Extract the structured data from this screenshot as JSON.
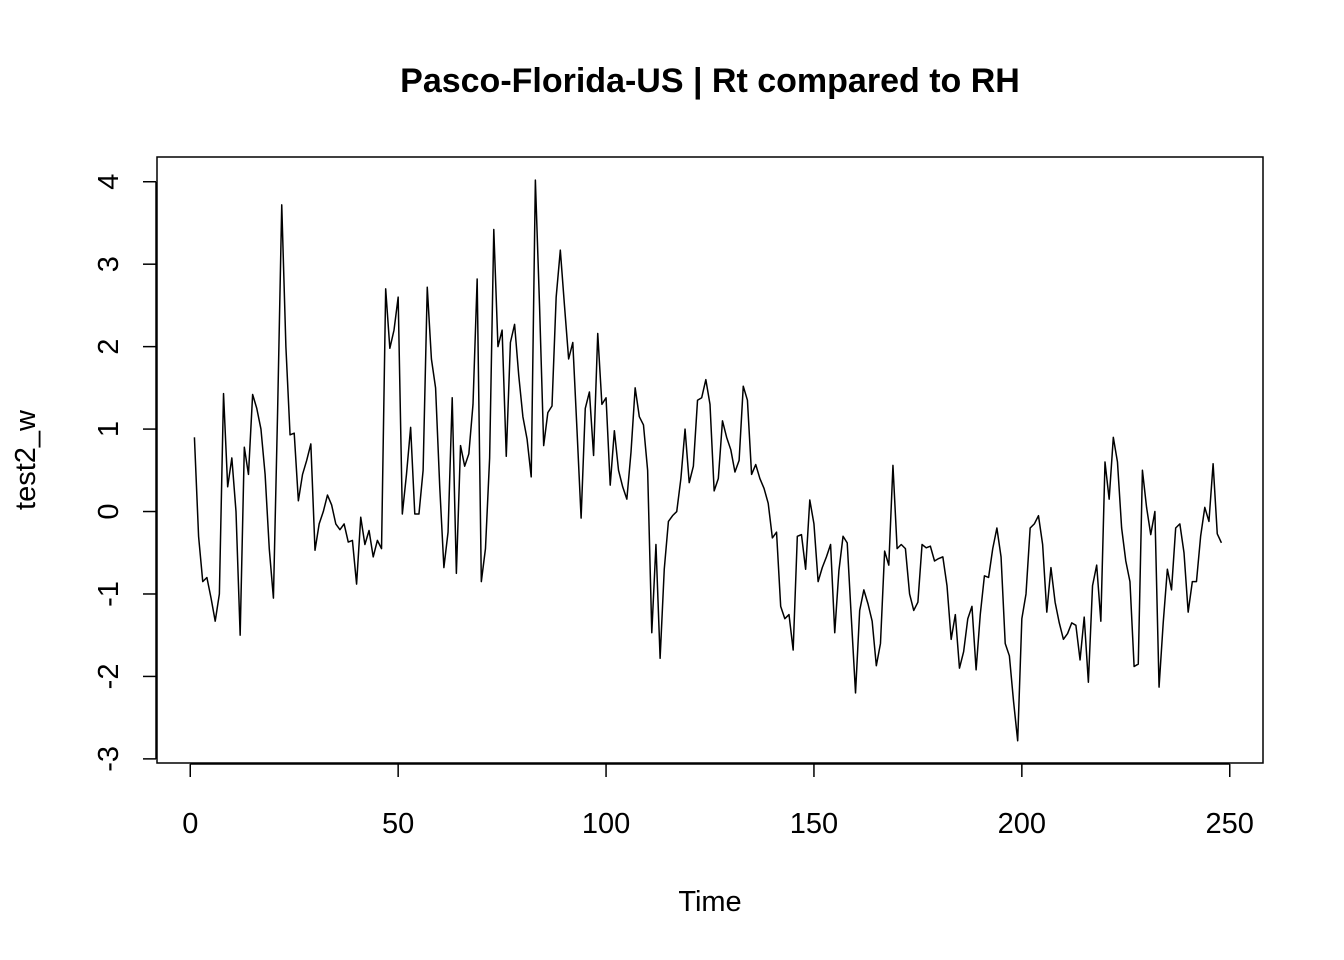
{
  "chart_data": {
    "type": "line",
    "title": "Pasco-Florida-US | Rt compared to RH",
    "xlabel": "Time",
    "ylabel": "test2_w",
    "xlim": [
      -8,
      258
    ],
    "ylim": [
      -3.05,
      4.3
    ],
    "x_ticks": [
      0,
      50,
      100,
      150,
      200,
      250
    ],
    "x_tick_labels": [
      "0",
      "50",
      "100",
      "150",
      "200",
      "250"
    ],
    "y_ticks": [
      -3,
      -2,
      -1,
      0,
      1,
      2,
      3,
      4
    ],
    "y_tick_labels": [
      "-3",
      "-2",
      "-1",
      "0",
      "1",
      "2",
      "3",
      "4"
    ],
    "grid": false,
    "legend": "none",
    "line_color": "#000000",
    "series": [
      {
        "x_start": 1,
        "x_step": 1,
        "values": [
          0.9,
          -0.3,
          -0.85,
          -0.8,
          -1.05,
          -1.33,
          -1.0,
          1.43,
          0.3,
          0.65,
          0.0,
          -1.5,
          0.78,
          0.45,
          1.42,
          1.25,
          1.0,
          0.45,
          -0.45,
          -1.05,
          1.2,
          3.72,
          2.0,
          0.93,
          0.95,
          0.13,
          0.45,
          0.62,
          0.82,
          -0.47,
          -0.15,
          0.0,
          0.2,
          0.08,
          -0.15,
          -0.22,
          -0.15,
          -0.37,
          -0.35,
          -0.88,
          -0.07,
          -0.4,
          -0.23,
          -0.55,
          -0.35,
          -0.45,
          2.7,
          1.98,
          2.2,
          2.6,
          -0.03,
          0.45,
          1.02,
          -0.03,
          -0.03,
          0.5,
          2.72,
          1.85,
          1.5,
          0.3,
          -0.68,
          -0.25,
          1.38,
          -0.75,
          0.8,
          0.55,
          0.7,
          1.3,
          2.82,
          -0.85,
          -0.45,
          0.65,
          3.42,
          2.0,
          2.2,
          0.67,
          2.05,
          2.27,
          1.65,
          1.15,
          0.88,
          0.42,
          4.02,
          2.5,
          0.8,
          1.2,
          1.28,
          2.6,
          3.17,
          2.5,
          1.85,
          2.05,
          1.0,
          -0.08,
          1.25,
          1.45,
          0.68,
          2.16,
          1.3,
          1.38,
          0.32,
          0.98,
          0.5,
          0.3,
          0.15,
          0.72,
          1.5,
          1.15,
          1.05,
          0.5,
          -1.47,
          -0.4,
          -1.78,
          -0.7,
          -0.12,
          -0.05,
          0.0,
          0.4,
          1.0,
          0.35,
          0.55,
          1.35,
          1.38,
          1.6,
          1.3,
          0.25,
          0.4,
          1.1,
          0.9,
          0.75,
          0.48,
          0.62,
          1.52,
          1.35,
          0.45,
          0.57,
          0.4,
          0.28,
          0.1,
          -0.32,
          -0.25,
          -1.15,
          -1.3,
          -1.25,
          -1.68,
          -0.3,
          -0.28,
          -0.7,
          0.14,
          -0.15,
          -0.85,
          -0.68,
          -0.55,
          -0.4,
          -1.47,
          -0.72,
          -0.3,
          -0.38,
          -1.3,
          -2.2,
          -1.2,
          -0.95,
          -1.12,
          -1.33,
          -1.87,
          -1.6,
          -0.48,
          -0.65,
          0.56,
          -0.45,
          -0.4,
          -0.45,
          -1.0,
          -1.2,
          -1.1,
          -0.4,
          -0.44,
          -0.42,
          -0.6,
          -0.57,
          -0.55,
          -0.9,
          -1.55,
          -1.25,
          -1.9,
          -1.7,
          -1.3,
          -1.15,
          -1.92,
          -1.25,
          -0.78,
          -0.8,
          -0.45,
          -0.2,
          -0.55,
          -1.6,
          -1.75,
          -2.3,
          -2.78,
          -1.3,
          -1.0,
          -0.2,
          -0.15,
          -0.05,
          -0.4,
          -1.22,
          -0.68,
          -1.1,
          -1.35,
          -1.55,
          -1.48,
          -1.35,
          -1.38,
          -1.8,
          -1.28,
          -2.07,
          -0.9,
          -0.65,
          -1.33,
          0.6,
          0.15,
          0.9,
          0.6,
          -0.2,
          -0.6,
          -0.85,
          -1.88,
          -1.85,
          0.5,
          0.05,
          -0.28,
          0.0,
          -2.13,
          -1.35,
          -0.7,
          -0.95,
          -0.2,
          -0.15,
          -0.5,
          -1.22,
          -0.85,
          -0.85,
          -0.3,
          0.05,
          -0.12,
          0.58,
          -0.27,
          -0.38
        ]
      }
    ]
  }
}
